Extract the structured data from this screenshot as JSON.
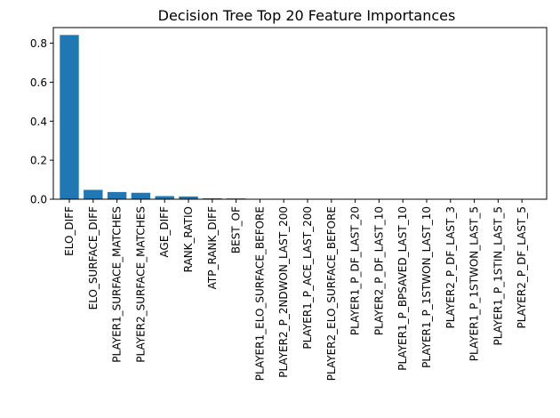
{
  "chart_data": {
    "type": "bar",
    "title": "Decision Tree Top 20 Feature Importances",
    "xlabel": "",
    "ylabel": "",
    "ylim": [
      0,
      0.88
    ],
    "yticks": [
      0.0,
      0.2,
      0.4,
      0.6,
      0.8
    ],
    "ytick_labels": [
      "0.0",
      "0.2",
      "0.4",
      "0.6",
      "0.8"
    ],
    "grid": false,
    "bar_color": "#1f77b4",
    "categories": [
      "ELO_DIFF",
      "ELO_SURFACE_DIFF",
      "PLAYER1_SURFACE_MATCHES",
      "PLAYER2_SURFACE_MATCHES",
      "AGE_DIFF",
      "RANK_RATIO",
      "ATP_RANK_DIFF",
      "BEST_OF",
      "PLAYER1_ELO_SURFACE_BEFORE",
      "PLAYER2_P_2NDWON_LAST_200",
      "PLAYER1_P_ACE_LAST_200",
      "PLAYER2_ELO_SURFACE_BEFORE",
      "PLAYER1_P_DF_LAST_20",
      "PLAYER2_P_DF_LAST_10",
      "PLAYER1_P_BPSAVED_LAST_10",
      "PLAYER1_P_1STWON_LAST_10",
      "PLAYER2_P_DF_LAST_3",
      "PLAYER1_P_1STWON_LAST_5",
      "PLAYER1_P_1STIN_LAST_5",
      "PLAYER2_P_DF_LAST_5"
    ],
    "values": [
      0.842,
      0.048,
      0.037,
      0.033,
      0.016,
      0.014,
      0.005,
      0.004,
      0.001,
      0.0008,
      0.0006,
      0.0005,
      0.0004,
      0.0003,
      0.0003,
      0.0002,
      0.0002,
      0.0001,
      0.0001,
      0.0001
    ]
  }
}
